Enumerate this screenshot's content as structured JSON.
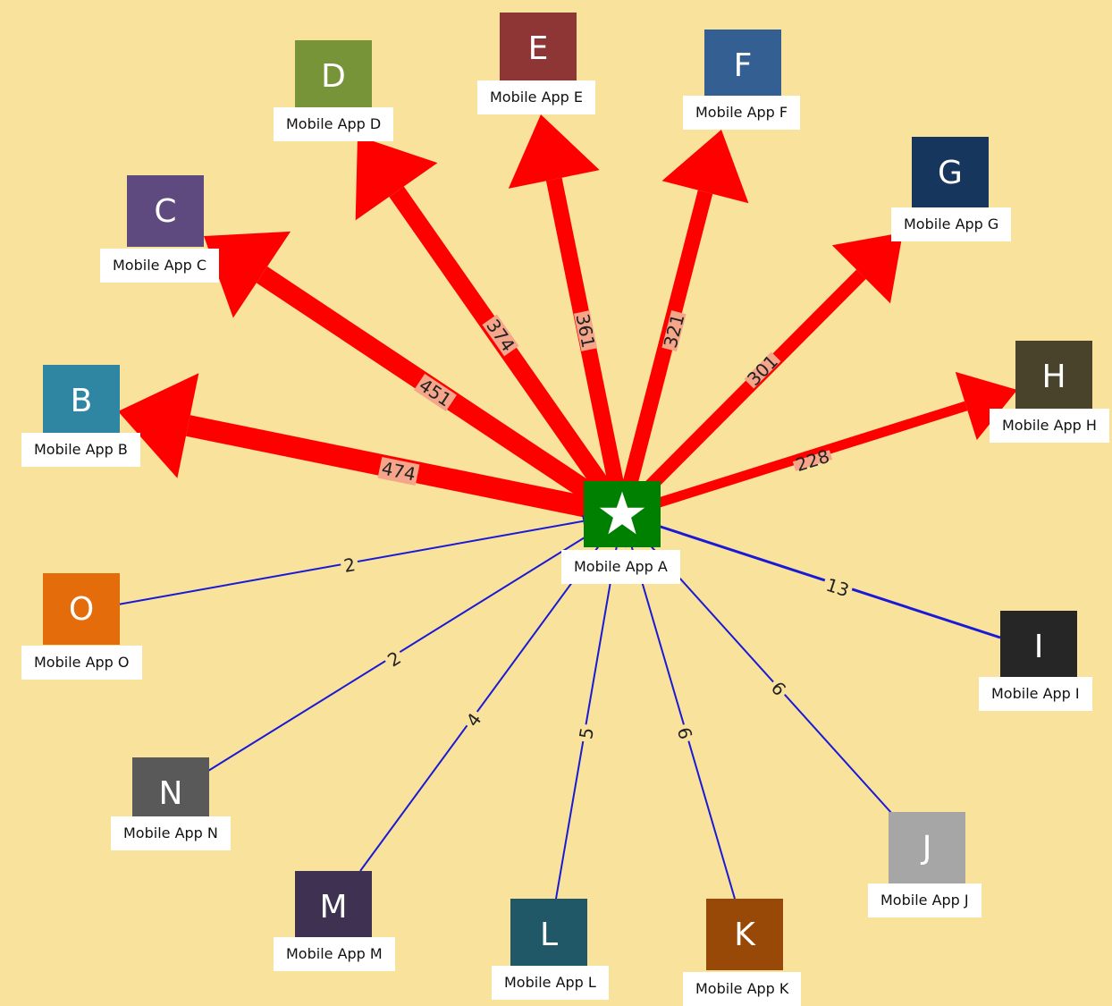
{
  "center": {
    "label": "Mobile App A",
    "icon": "star-icon",
    "color": "#008000"
  },
  "nodes": [
    {
      "id": "B",
      "letter": "B",
      "label": "Mobile App B",
      "color": "#2e86a3",
      "value": "474",
      "direction": "outgoing"
    },
    {
      "id": "C",
      "letter": "C",
      "label": "Mobile App C",
      "color": "#5e4a7f",
      "value": "451",
      "direction": "outgoing"
    },
    {
      "id": "D",
      "letter": "D",
      "label": "Mobile App D",
      "color": "#789439",
      "value": "374",
      "direction": "outgoing"
    },
    {
      "id": "E",
      "letter": "E",
      "label": "Mobile App E",
      "color": "#8e3635",
      "value": "361",
      "direction": "outgoing"
    },
    {
      "id": "F",
      "letter": "F",
      "label": "Mobile App F",
      "color": "#345f93",
      "value": "321",
      "direction": "outgoing"
    },
    {
      "id": "G",
      "letter": "G",
      "label": "Mobile App G",
      "color": "#17365d",
      "value": "301",
      "direction": "outgoing"
    },
    {
      "id": "H",
      "letter": "H",
      "label": "Mobile App H",
      "color": "#4a432c",
      "value": "228",
      "direction": "outgoing"
    },
    {
      "id": "I",
      "letter": "I",
      "label": "Mobile App I",
      "color": "#262626",
      "value": "13",
      "direction": "incoming"
    },
    {
      "id": "J",
      "letter": "J",
      "label": "Mobile App J",
      "color": "#a6a6a6",
      "value": "6",
      "direction": "incoming"
    },
    {
      "id": "K",
      "letter": "K",
      "label": "Mobile App K",
      "color": "#984807",
      "value": "6",
      "direction": "incoming"
    },
    {
      "id": "L",
      "letter": "L",
      "label": "Mobile App L",
      "color": "#215868",
      "value": "5",
      "direction": "incoming"
    },
    {
      "id": "M",
      "letter": "M",
      "label": "Mobile App M",
      "color": "#3f3151",
      "value": "4",
      "direction": "incoming"
    },
    {
      "id": "N",
      "letter": "N",
      "label": "Mobile App N",
      "color": "#595959",
      "value": "2",
      "direction": "incoming"
    },
    {
      "id": "O",
      "letter": "O",
      "label": "Mobile App O",
      "color": "#e46c0a",
      "value": "2",
      "direction": "incoming"
    }
  ],
  "edge_colors": {
    "outgoing": "#ff0000",
    "incoming": "#1a1ad6",
    "label_bg": "#f4a58a"
  }
}
